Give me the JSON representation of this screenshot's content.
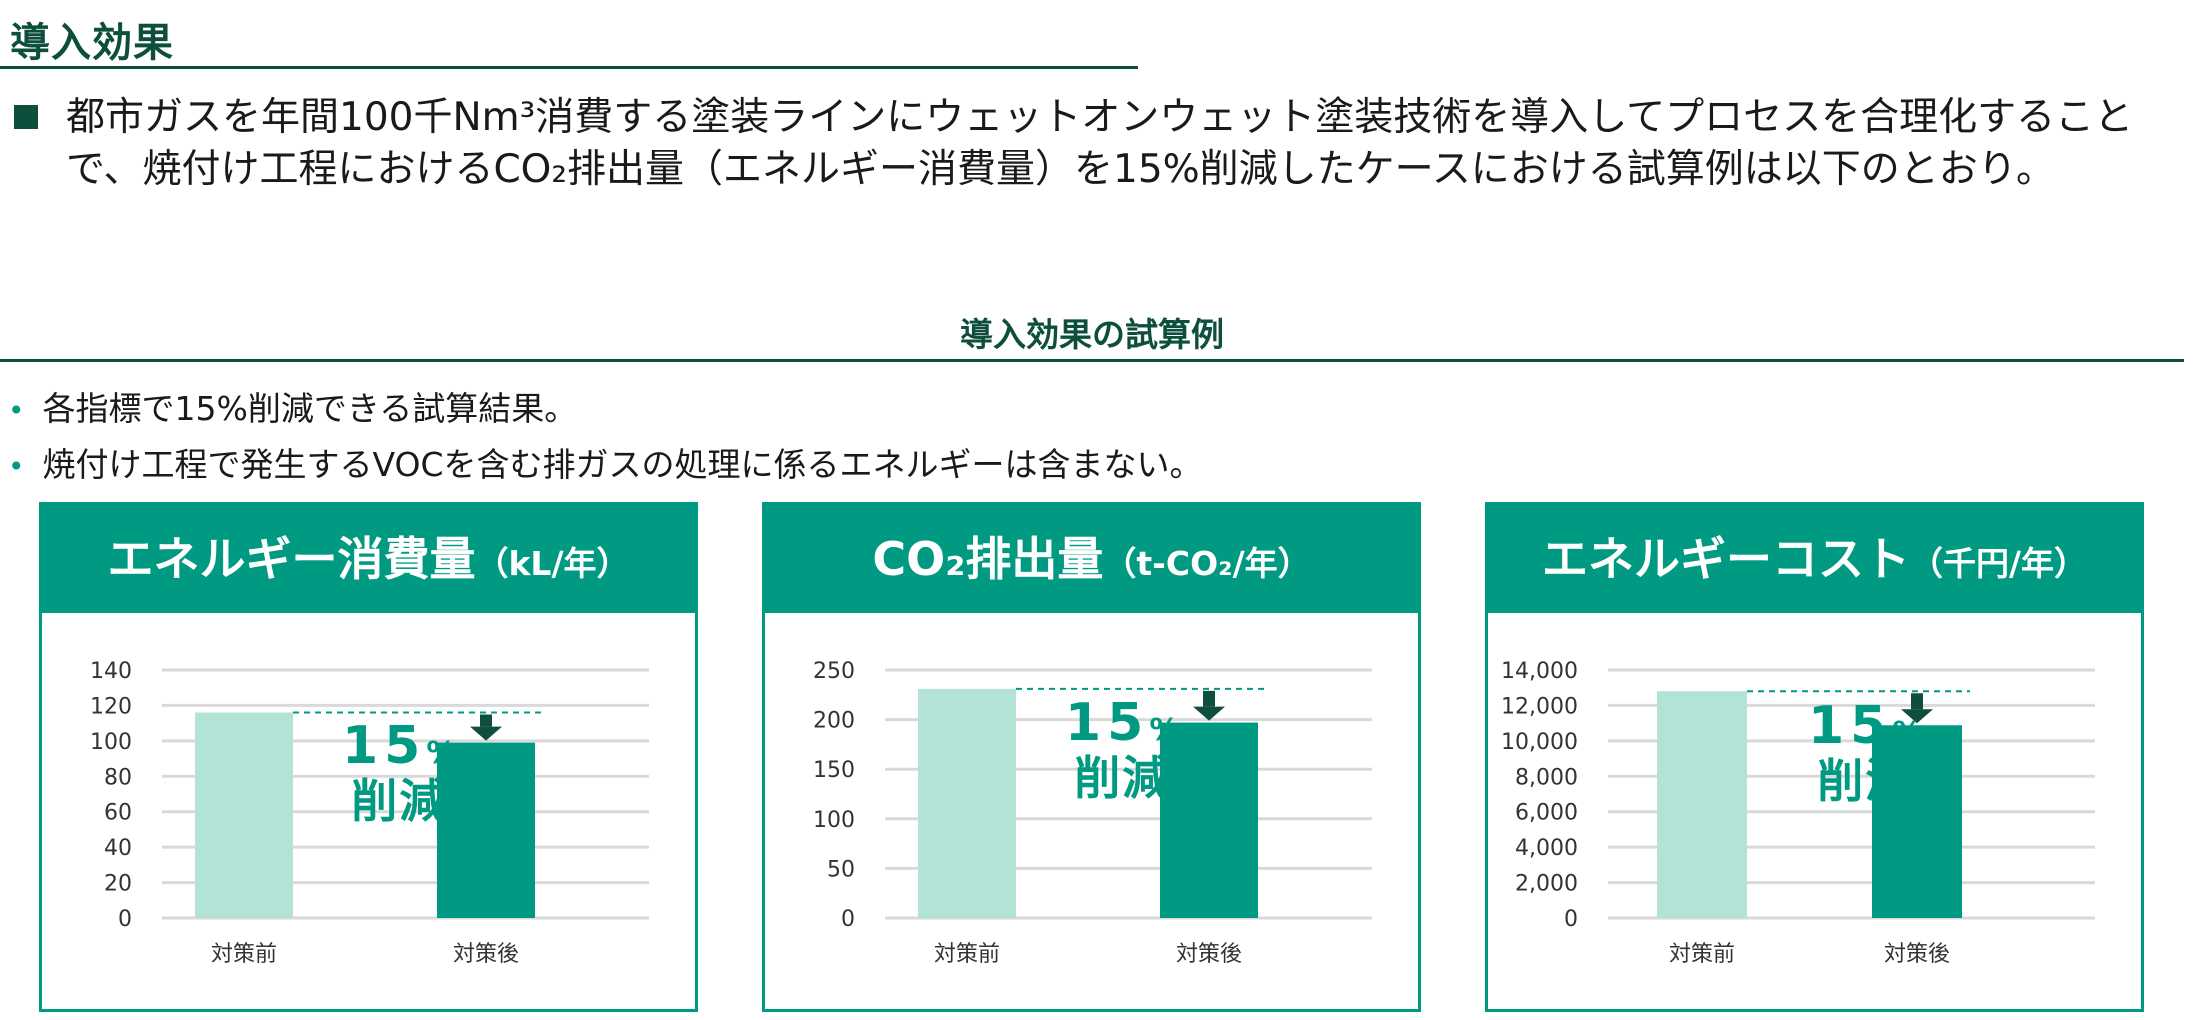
{
  "header": {
    "title": "導入効果",
    "lead": "都市ガスを年間100千Nm³消費する塗装ラインにウェットオンウェット塗装技術を導入してプロセスを合理化することで、焼付け工程におけるCO₂排出量（エネルギー消費量）を15%削減したケースにおける試算例は以下のとおり。"
  },
  "section": {
    "heading": "導入効果の試算例",
    "bullets": [
      "各指標で15%削減できる試算結果。",
      "焼付け工程で発生するVOCを含む排ガスの処理に係るエネルギーは含まない。"
    ]
  },
  "annotation": {
    "value": "15",
    "unit": "%",
    "label": "削減"
  },
  "colors": {
    "accent": "#009a82",
    "before_bar": "#b3e3d6",
    "after_bar": "#009a82",
    "dark_green": "#0d4f3c"
  },
  "chart_data": [
    {
      "type": "bar",
      "title": "エネルギー消費量",
      "unit": "（kL/年）",
      "categories": [
        "対策前",
        "対策後"
      ],
      "values": [
        116,
        99
      ],
      "ylim": [
        0,
        140
      ],
      "yticks": [
        0,
        20,
        40,
        60,
        80,
        100,
        120,
        140
      ],
      "ytick_labels": [
        "0",
        "20",
        "40",
        "60",
        "80",
        "100",
        "120",
        "140"
      ]
    },
    {
      "type": "bar",
      "title": "CO₂排出量",
      "unit": "（t-CO₂/年）",
      "categories": [
        "対策前",
        "対策後"
      ],
      "values": [
        231,
        197
      ],
      "ylim": [
        0,
        250
      ],
      "yticks": [
        0,
        50,
        100,
        150,
        200,
        250
      ],
      "ytick_labels": [
        "0",
        "50",
        "100",
        "150",
        "200",
        "250"
      ]
    },
    {
      "type": "bar",
      "title": "エネルギーコスト",
      "unit": "（千円/年）",
      "categories": [
        "対策前",
        "対策後"
      ],
      "values": [
        12800,
        10880
      ],
      "ylim": [
        0,
        14000
      ],
      "yticks": [
        0,
        2000,
        4000,
        6000,
        8000,
        10000,
        12000,
        14000
      ],
      "ytick_labels": [
        "0",
        "2,000",
        "4,000",
        "6,000",
        "8,000",
        "10,000",
        "12,000",
        "14,000"
      ]
    }
  ]
}
